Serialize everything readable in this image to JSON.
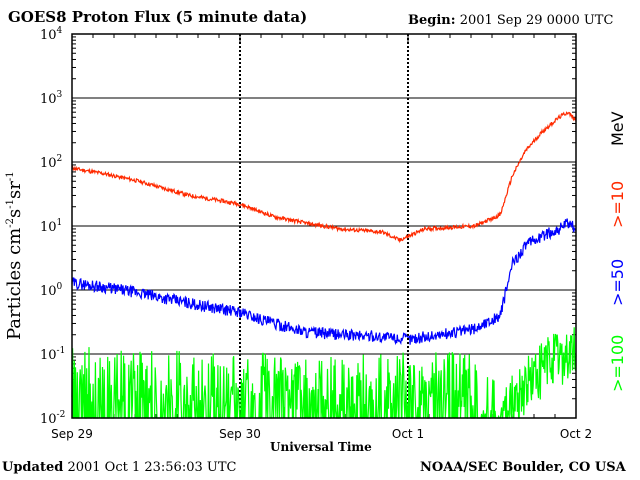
{
  "header": {
    "title": "GOES8 Proton Flux (5 minute data)",
    "begin_label": "Begin:",
    "begin_value": "2001 Sep 29 0000 UTC"
  },
  "footer": {
    "updated_label": "Updated",
    "updated_value": "2001 Oct  1 23:56:03 UTC",
    "credit": "NOAA/SEC Boulder, CO USA"
  },
  "axes": {
    "xlabel": "Universal Time",
    "ylabel_parts": [
      "Particles cm",
      "-2",
      "s",
      "-1",
      "sr",
      "-1"
    ],
    "xticks": [
      "Sep 29",
      "Sep 30",
      "Oct 1",
      "Oct 2"
    ],
    "yticks": [
      {
        "base": "10",
        "exp": "-2"
      },
      {
        "base": "10",
        "exp": "-1"
      },
      {
        "base": "10",
        "exp": "0"
      },
      {
        "base": "10",
        "exp": "1"
      },
      {
        "base": "10",
        "exp": "2"
      },
      {
        "base": "10",
        "exp": "3"
      },
      {
        "base": "10",
        "exp": "4"
      }
    ],
    "unit_label": "MeV"
  },
  "colors": {
    "ge10": "#ff2a00",
    "ge50": "#0000ff",
    "ge100": "#00ff00",
    "frame": "#000000"
  },
  "chart_data": {
    "type": "line",
    "title": "GOES8 Proton Flux (5 minute data)",
    "xlabel": "Universal Time",
    "ylabel": "Particles cm-2s-1sr-1",
    "yscale": "log",
    "ylim": [
      0.01,
      10000
    ],
    "xlim": [
      "2001-09-29T00:00",
      "2001-10-02T00:00"
    ],
    "grid": "horizontal at each decade",
    "x_unit": "days since 2001 Sep 29 0000 UTC",
    "series": [
      {
        "name": ">=10 MeV",
        "color": "#ff2a00",
        "x": [
          0,
          0.2,
          0.4,
          0.5,
          0.7,
          1.0,
          1.2,
          1.4,
          1.6,
          1.85,
          1.95,
          2.1,
          2.4,
          2.55,
          2.62,
          2.7,
          2.8,
          2.9,
          2.95,
          3.0
        ],
        "values": [
          80,
          65,
          50,
          42,
          30,
          22,
          14,
          11,
          9,
          8,
          6,
          9,
          10,
          15,
          60,
          150,
          300,
          500,
          600,
          450
        ]
      },
      {
        "name": ">=50 MeV",
        "color": "#0000ff",
        "x": [
          0,
          0.2,
          0.4,
          0.6,
          0.8,
          1.0,
          1.2,
          1.4,
          1.6,
          1.8,
          2.0,
          2.2,
          2.4,
          2.55,
          2.62,
          2.7,
          2.8,
          2.9,
          2.95,
          3.0
        ],
        "values": [
          1.3,
          1.1,
          0.9,
          0.7,
          0.55,
          0.45,
          0.3,
          0.22,
          0.2,
          0.19,
          0.17,
          0.2,
          0.25,
          0.4,
          2.5,
          5,
          7,
          9,
          11,
          9
        ]
      },
      {
        "name": ">=100 MeV",
        "color": "#00ff00",
        "x": [
          0,
          0.5,
          1.0,
          1.5,
          2.0,
          2.4,
          2.55,
          2.7,
          2.85,
          3.0
        ],
        "values": [
          0.05,
          0.04,
          0.04,
          0.035,
          0.04,
          0.04,
          0.01,
          0.03,
          0.08,
          0.1
        ]
      }
    ],
    "legend": [
      {
        "label": ">=10",
        "color": "#ff2a00"
      },
      {
        "label": ">=50",
        "color": "#0000ff"
      },
      {
        "label": ">=100",
        "color": "#00ff00"
      }
    ]
  }
}
